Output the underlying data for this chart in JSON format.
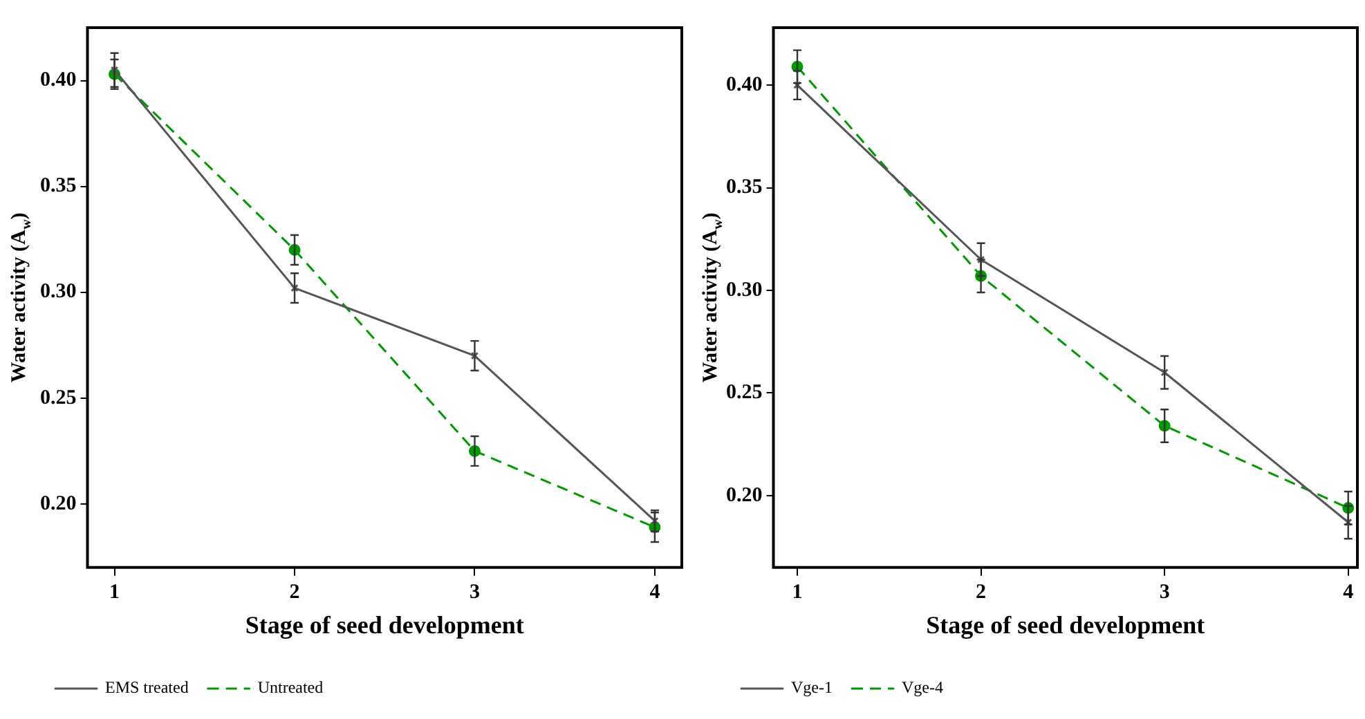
{
  "chart_data": [
    {
      "type": "line",
      "xlabel": "Stage of seed development",
      "ylabel": "Water activity (A$_{w}$)",
      "x": [
        1,
        2,
        3,
        4
      ],
      "xlim": [
        0.85,
        4.15
      ],
      "xticks": [
        1,
        2,
        3,
        4
      ],
      "ylim": [
        0.17,
        0.425
      ],
      "yticks": [
        {
          "value": 0.2,
          "label": "0.20"
        },
        {
          "value": 0.25,
          "label": "0.25"
        },
        {
          "value": 0.3,
          "label": "0.30"
        },
        {
          "value": 0.35,
          "label": "0.35"
        },
        {
          "value": 0.4,
          "label": "0.40"
        }
      ],
      "grid": false,
      "legend": "bottom left",
      "series": [
        {
          "name": "EMS treated",
          "color": "#555555",
          "values": [
            0.405,
            0.302,
            0.27,
            0.192
          ],
          "errors": [
            0.008,
            0.007,
            0.007,
            0.005
          ],
          "marker": "cross",
          "line_style": "solid"
        },
        {
          "name": "Untreated",
          "color": "#009900",
          "values": [
            0.403,
            0.32,
            0.225,
            0.189
          ],
          "errors": [
            0.007,
            0.007,
            0.007,
            0.007
          ],
          "marker": "circle",
          "line_style": "dashed"
        }
      ]
    },
    {
      "type": "line",
      "xlabel": "Stage of seed development",
      "ylabel": "Water activity (A$_{w}$)",
      "x": [
        1,
        2,
        3,
        4
      ],
      "xlim": [
        0.87,
        4.05
      ],
      "xticks": [
        1,
        2,
        3,
        4
      ],
      "ylim": [
        0.165,
        0.428
      ],
      "yticks": [
        {
          "value": 0.2,
          "label": "0.20"
        },
        {
          "value": 0.25,
          "label": "0.25"
        },
        {
          "value": 0.3,
          "label": "0.30"
        },
        {
          "value": 0.35,
          "label": "0.35"
        },
        {
          "value": 0.4,
          "label": "0.40"
        }
      ],
      "grid": false,
      "legend": "bottom left",
      "series": [
        {
          "name": "Vge-1",
          "color": "#555555",
          "values": [
            0.4,
            0.315,
            0.26,
            0.187
          ],
          "errors": [
            0.007,
            0.008,
            0.008,
            0.008
          ],
          "marker": "cross",
          "line_style": "solid"
        },
        {
          "name": "Vge-4",
          "color": "#009900",
          "values": [
            0.409,
            0.307,
            0.234,
            0.194
          ],
          "errors": [
            0.008,
            0.008,
            0.008,
            0.008
          ],
          "marker": "circle",
          "line_style": "dashed"
        }
      ]
    }
  ]
}
